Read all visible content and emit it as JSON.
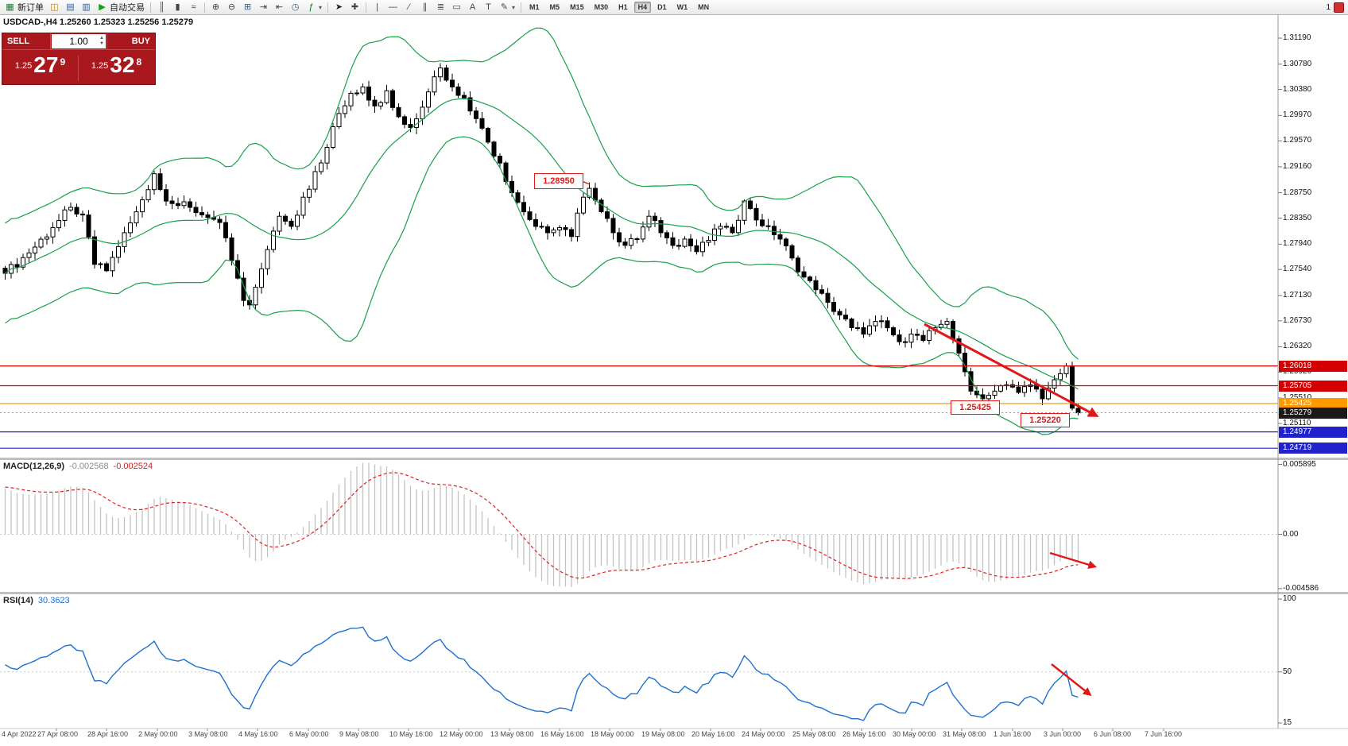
{
  "chart": {
    "ohlc_line": "USDCAD-,H4  1.25260 1.25323 1.25256 1.25279",
    "symbol_period": "USDCAD-,H4"
  },
  "icons": {
    "caret": "▾",
    "spin_up": "▲",
    "spin_down": "▼"
  },
  "toolbar": {
    "items": [
      {
        "n": "new-order-button",
        "g": "▦",
        "c": "#1f7a33",
        "l": "新订单"
      },
      {
        "n": "chart-window-icon",
        "g": "◫",
        "c": "#b8860b"
      },
      {
        "n": "market-watch-icon",
        "g": "▤",
        "c": "#33609e"
      },
      {
        "n": "data-window-icon",
        "g": "▥",
        "c": "#33609e"
      },
      {
        "n": "auto-trading-button",
        "g": "▶",
        "c": "#13a10e",
        "l": "自动交易"
      },
      {
        "t": "sep"
      },
      {
        "n": "bar-chart-icon",
        "g": "║",
        "c": "#444"
      },
      {
        "n": "candlestick-chart-icon",
        "g": "▮",
        "c": "#444"
      },
      {
        "n": "line-chart-icon",
        "g": "≈",
        "c": "#444"
      },
      {
        "t": "sep"
      },
      {
        "n": "zoom-in-icon",
        "g": "⊕",
        "c": "#444"
      },
      {
        "n": "zoom-out-icon",
        "g": "⊖",
        "c": "#444"
      },
      {
        "n": "tile-windows-icon",
        "g": "⊞",
        "c": "#33609e"
      },
      {
        "n": "auto-scroll-icon",
        "g": "⇥",
        "c": "#444"
      },
      {
        "n": "chart-shift-icon",
        "g": "⇤",
        "c": "#444"
      },
      {
        "n": "period-icon",
        "g": "◷",
        "c": "#33609e"
      },
      {
        "n": "indicators-icon",
        "g": "ƒ",
        "c": "#0a7a0a",
        "caret": true
      },
      {
        "t": "sep"
      },
      {
        "n": "cursor-icon",
        "g": "➤",
        "c": "#222"
      },
      {
        "n": "crosshair-icon",
        "g": "✚",
        "c": "#444"
      },
      {
        "t": "sep"
      },
      {
        "n": "vertical-line-icon",
        "g": "|",
        "c": "#444"
      },
      {
        "n": "horizontal-line-icon",
        "g": "—",
        "c": "#444"
      },
      {
        "n": "trendline-icon",
        "g": "∕",
        "c": "#444"
      },
      {
        "n": "equidistant-channel-icon",
        "g": "∥",
        "c": "#444"
      },
      {
        "n": "fibonacci-icon",
        "g": "≣",
        "c": "#444"
      },
      {
        "n": "shapes-icon",
        "g": "▭",
        "c": "#444"
      },
      {
        "n": "text-icon",
        "g": "A",
        "c": "#444"
      },
      {
        "n": "text-label-icon",
        "g": "T",
        "c": "#444"
      },
      {
        "n": "arrow-styles-icon",
        "g": "✎",
        "c": "#444",
        "caret": true
      },
      {
        "t": "sep"
      }
    ],
    "timeframes": [
      "M1",
      "M5",
      "M15",
      "M30",
      "H1",
      "H4",
      "D1",
      "W1",
      "MN"
    ],
    "active_timeframe": "H4",
    "right_badge": "1"
  },
  "trade_panel": {
    "sell_label": "SELL",
    "buy_label": "BUY",
    "lot": "1.00",
    "sell_price_prefix": "1.25",
    "sell_price_big": "27",
    "sell_price_sup": "9",
    "buy_price_prefix": "1.25",
    "buy_price_big": "32",
    "buy_price_sup": "8"
  },
  "price_axis": {
    "labels": [
      "1.31190",
      "1.30780",
      "1.30380",
      "1.29970",
      "1.29570",
      "1.29160",
      "1.28750",
      "1.28350",
      "1.27940",
      "1.27540",
      "1.27130",
      "1.26730",
      "1.26320",
      "1.25920",
      "1.25510",
      "1.25110"
    ],
    "tags": [
      {
        "text": "1.26018",
        "color": "#d40000"
      },
      {
        "text": "1.25705",
        "color": "#d40000"
      },
      {
        "text": "1.25425",
        "color": "#ff9a00"
      },
      {
        "text": "1.25279",
        "color": "#1a1a1a"
      },
      {
        "text": "1.24977",
        "color": "#2222cc"
      },
      {
        "text": "1.24719",
        "color": "#2222cc"
      }
    ]
  },
  "macd": {
    "name": "MACD(12,26,9)",
    "value_main": "-0.002568",
    "value_signal": "-0.002524",
    "axis": [
      "0.005895",
      "0.00",
      "-0.004586"
    ],
    "axis_values": [
      0.005895,
      0,
      -0.004586
    ]
  },
  "rsi": {
    "name": "RSI(14)",
    "value": "30.3623",
    "axis": [
      "100",
      "50",
      "15"
    ],
    "axis_values": [
      100,
      50,
      15
    ]
  },
  "time_axis": {
    "labels": [
      "4 Apr 2022",
      "27 Apr 08:00",
      "28 Apr 16:00",
      "2 May 00:00",
      "3 May 08:00",
      "4 May 16:00",
      "6 May 00:00",
      "9 May 08:00",
      "10 May 16:00",
      "12 May 00:00",
      "13 May 08:00",
      "16 May 16:00",
      "18 May 00:00",
      "19 May 08:00",
      "20 May 16:00",
      "24 May 00:00",
      "25 May 08:00",
      "26 May 16:00",
      "30 May 00:00",
      "31 May 08:00",
      "1 Jun 16:00",
      "3 Jun 00:00",
      "6 Jun 08:00",
      "7 Jun 16:00"
    ]
  },
  "annotations": {
    "high_label": "1.28950",
    "support_label": "1.25425",
    "low_label": "1.25220",
    "arrows": [
      {
        "name": "price-trend-arrow",
        "from": [
          1163,
          408
        ],
        "to": [
          1379,
          523
        ],
        "w": 3
      },
      {
        "name": "macd-arrow",
        "from": [
          1321,
          696
        ],
        "to": [
          1377,
          713
        ],
        "w": 2.4
      },
      {
        "name": "rsi-arrow",
        "from": [
          1323,
          836
        ],
        "to": [
          1371,
          874
        ],
        "w": 2.4
      }
    ]
  },
  "chart_data": {
    "type": "candlestick",
    "symbol": "USDCAD-",
    "timeframe": "H4",
    "ohlc_current": {
      "open": 1.2526,
      "high": 1.25323,
      "low": 1.25256,
      "close": 1.25279
    },
    "current_price": 1.25279,
    "bars": 181,
    "price_keyframes": [
      [
        0,
        1.2748
      ],
      [
        4,
        1.278
      ],
      [
        8,
        1.282
      ],
      [
        11,
        1.2852
      ],
      [
        13,
        1.284
      ],
      [
        15,
        1.2762
      ],
      [
        17,
        1.2752
      ],
      [
        19,
        1.279
      ],
      [
        22,
        1.2845
      ],
      [
        25,
        1.2905
      ],
      [
        26,
        1.288
      ],
      [
        28,
        1.2858
      ],
      [
        31,
        1.2852
      ],
      [
        34,
        1.2836
      ],
      [
        36,
        1.2828
      ],
      [
        38,
        1.2768
      ],
      [
        40,
        1.2705
      ],
      [
        41,
        1.2698
      ],
      [
        43,
        1.2755
      ],
      [
        46,
        1.2838
      ],
      [
        48,
        1.2822
      ],
      [
        50,
        1.2868
      ],
      [
        53,
        1.2922
      ],
      [
        56,
        1.3
      ],
      [
        58,
        1.3032
      ],
      [
        60,
        1.3042
      ],
      [
        62,
        1.3012
      ],
      [
        64,
        1.3036
      ],
      [
        66,
        1.2995
      ],
      [
        68,
        1.2978
      ],
      [
        70,
        1.301
      ],
      [
        72,
        1.3058
      ],
      [
        73,
        1.3072
      ],
      [
        75,
        1.3042
      ],
      [
        77,
        1.3025
      ],
      [
        79,
        1.2992
      ],
      [
        81,
        1.2955
      ],
      [
        83,
        1.2922
      ],
      [
        85,
        1.2875
      ],
      [
        87,
        1.2845
      ],
      [
        89,
        1.2822
      ],
      [
        91,
        1.2812
      ],
      [
        93,
        1.282
      ],
      [
        95,
        1.2806
      ],
      [
        97,
        1.2868
      ],
      [
        98,
        1.2882
      ],
      [
        100,
        1.2845
      ],
      [
        102,
        1.2812
      ],
      [
        104,
        1.2792
      ],
      [
        106,
        1.2802
      ],
      [
        108,
        1.2838
      ],
      [
        110,
        1.2812
      ],
      [
        112,
        1.2792
      ],
      [
        114,
        1.2802
      ],
      [
        116,
        1.2782
      ],
      [
        118,
        1.28
      ],
      [
        120,
        1.2822
      ],
      [
        122,
        1.2812
      ],
      [
        124,
        1.2862
      ],
      [
        126,
        1.2832
      ],
      [
        128,
        1.2822
      ],
      [
        130,
        1.2802
      ],
      [
        132,
        1.2772
      ],
      [
        134,
        1.2742
      ],
      [
        136,
        1.2722
      ],
      [
        138,
        1.2702
      ],
      [
        140,
        1.2682
      ],
      [
        142,
        1.2662
      ],
      [
        144,
        1.2652
      ],
      [
        146,
        1.2672
      ],
      [
        148,
        1.2662
      ],
      [
        150,
        1.264
      ],
      [
        152,
        1.2652
      ],
      [
        154,
        1.2642
      ],
      [
        156,
        1.2662
      ],
      [
        158,
        1.2672
      ],
      [
        160,
        1.2622
      ],
      [
        162,
        1.2562
      ],
      [
        164,
        1.255
      ],
      [
        166,
        1.2562
      ],
      [
        168,
        1.2572
      ],
      [
        170,
        1.256
      ],
      [
        172,
        1.2572
      ],
      [
        174,
        1.255
      ],
      [
        176,
        1.258
      ],
      [
        178,
        1.2602
      ],
      [
        179,
        1.2535
      ],
      [
        180,
        1.25279
      ]
    ],
    "horizontal_levels": [
      {
        "price": 1.26018,
        "color": "#d40000"
      },
      {
        "price": 1.25705,
        "color": "#d40000"
      },
      {
        "price": 1.25425,
        "color": "#ff9a00"
      },
      {
        "price": 1.24977,
        "color": "#2222cc"
      },
      {
        "price": 1.24719,
        "color": "#2222cc"
      }
    ],
    "indicators": {
      "bollinger_bands": {
        "period": 20,
        "deviation": 2,
        "color": "#18a04a"
      },
      "macd": {
        "fast": 12,
        "slow": 26,
        "signal": 9,
        "current_main": -0.002568,
        "current_signal": -0.002524,
        "histogram_color": "#c2c2c2",
        "signal_color": "#e02020"
      },
      "rsi": {
        "period": 14,
        "current": 30.3623,
        "color": "#1d71cf"
      }
    }
  }
}
